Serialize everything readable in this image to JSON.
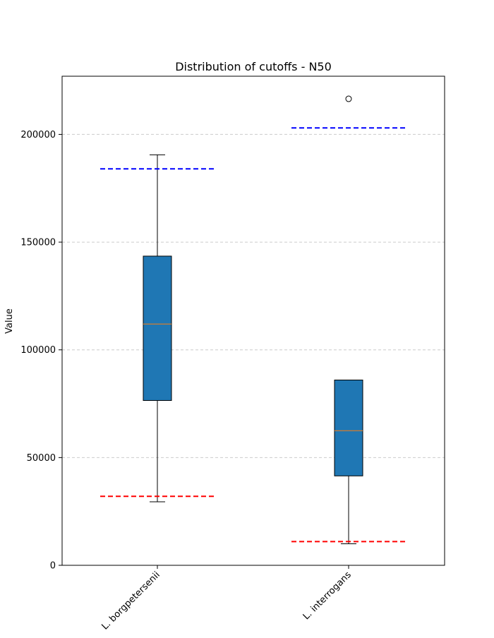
{
  "chart_data": {
    "type": "box",
    "title": "Distribution of cutoffs - N50",
    "xlabel": "",
    "ylabel": "Value",
    "ylim": [
      0,
      227000
    ],
    "yticks": [
      0,
      50000,
      100000,
      150000,
      200000
    ],
    "grid": "horizontal-dashed",
    "categories": [
      "L. borgpetersenii",
      "L. interrogans"
    ],
    "boxes": [
      {
        "category": "L. borgpetersenii",
        "whisker_low": 29500,
        "q1": 76500,
        "median": 112000,
        "q3": 143500,
        "whisker_high": 190500,
        "outliers": [],
        "upper_cutoff": 184000,
        "lower_cutoff": 32000
      },
      {
        "category": "L. interrogans",
        "whisker_low": 10000,
        "q1": 41500,
        "median": 62500,
        "q3": 86000,
        "whisker_high": 86000,
        "outliers": [
          216500
        ],
        "upper_cutoff": 203000,
        "lower_cutoff": 11000
      }
    ],
    "colors": {
      "box_fill": "#1f77b4",
      "median": "#ff7f0e",
      "upper_cutoff": "#0000ff",
      "lower_cutoff": "#ff0000",
      "grid": "#cccccc"
    }
  }
}
